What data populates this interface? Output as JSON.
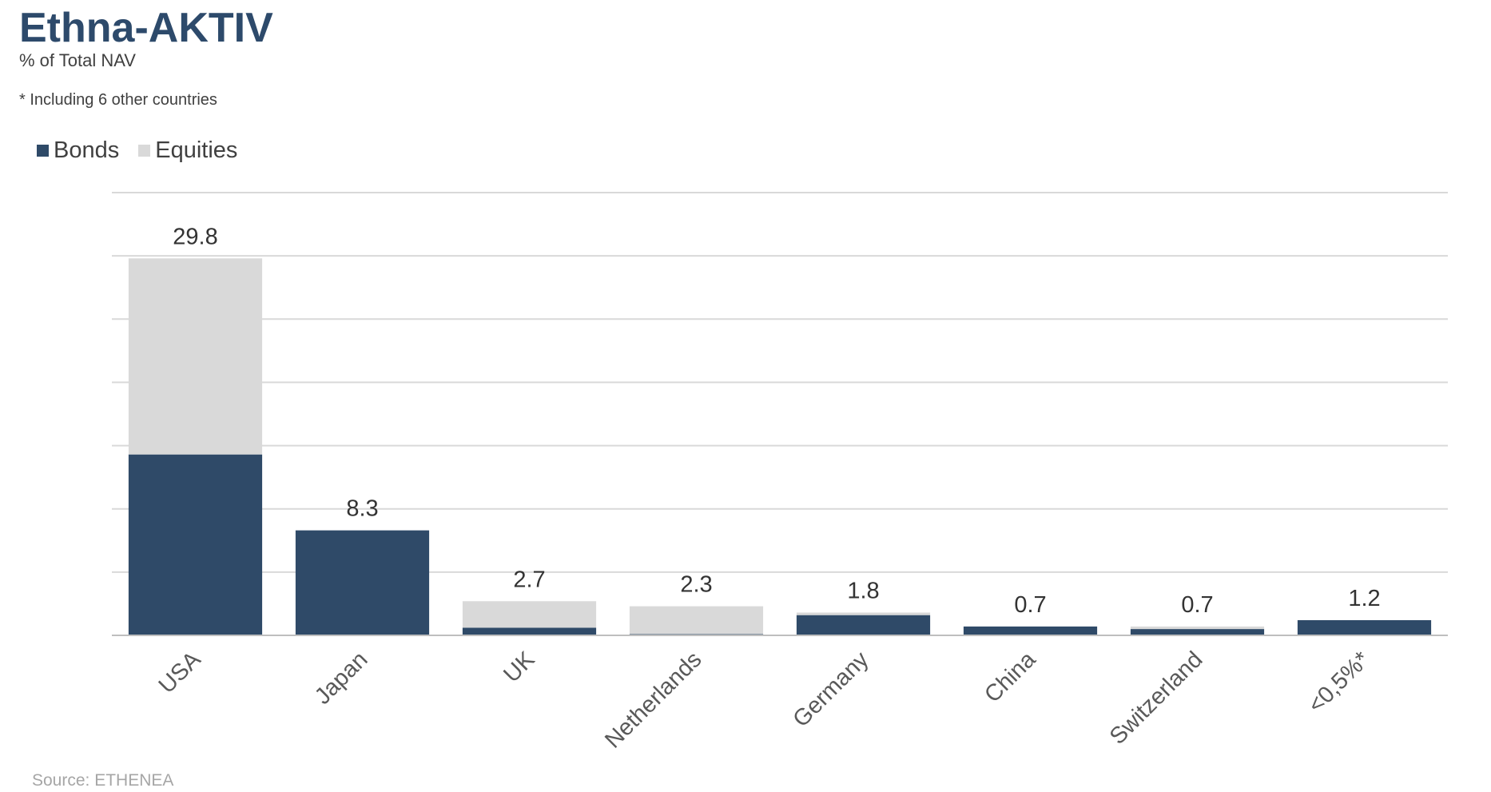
{
  "colors": {
    "bonds": "#2f4a68",
    "equities": "#d9d9d9",
    "title": "#2d4a6b"
  },
  "legend_entries": [
    {
      "label": "Bonds",
      "color": "#2f4a68"
    },
    {
      "label": "Equities",
      "color": "#d9d9d9"
    }
  ],
  "source": "Source: ETHENEA",
  "chart_data": {
    "type": "bar",
    "stacked": true,
    "title": "Ethna-AKTIV",
    "subtitle": "% of Total NAV",
    "footnote": "* Including 6 other countries",
    "categories": [
      "USA",
      "Japan",
      "UK",
      "Netherlands",
      "Germany",
      "China",
      "Switzerland",
      "<0,5%*"
    ],
    "series": [
      {
        "name": "Bonds",
        "values": [
          14.3,
          8.3,
          0.6,
          0.1,
          1.6,
          0.7,
          0.5,
          1.2
        ]
      },
      {
        "name": "Equities",
        "values": [
          15.5,
          0.0,
          2.1,
          2.2,
          0.2,
          0.0,
          0.2,
          0.0
        ]
      }
    ],
    "totals": [
      "29.8",
      "8.3",
      "2.7",
      "2.3",
      "1.8",
      "0.7",
      "0.7",
      "1.2"
    ],
    "ylim": [
      0,
      35
    ],
    "grid": true,
    "legend": "top-left",
    "xlabel": "",
    "ylabel": ""
  }
}
